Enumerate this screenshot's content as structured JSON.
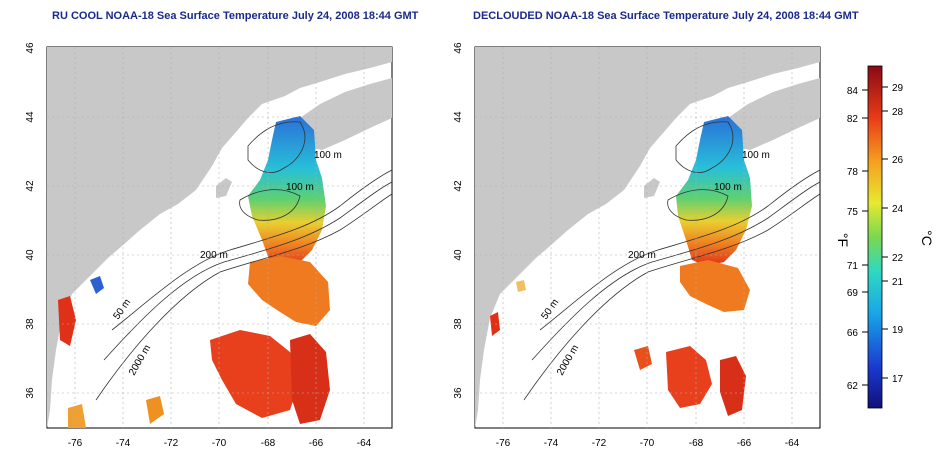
{
  "panels": [
    {
      "title": "RU COOL NOAA-18 Sea Surface Temperature July 24, 2008 18:44 GMT",
      "contour_labels": [
        "100 m",
        "100 m",
        "200 m",
        "50 m",
        "2000 m"
      ]
    },
    {
      "title": "DECLOUDED NOAA-18 Sea Surface Temperature July 24, 2008 18:44 GMT",
      "contour_labels": [
        "100 m",
        "100 m",
        "200 m",
        "50 m",
        "2000 m"
      ]
    }
  ],
  "axes": {
    "lon_ticks": [
      "-76",
      "-74",
      "-72",
      "-70",
      "-68",
      "-66",
      "-64"
    ],
    "lat_ticks": [
      "46",
      "44",
      "42",
      "40",
      "38",
      "36"
    ]
  },
  "colorbar": {
    "f_label": "°F",
    "c_label": "°C",
    "f_ticks": [
      "84",
      "82",
      "78",
      "75",
      "71",
      "69",
      "66",
      "62"
    ],
    "c_ticks": [
      "29",
      "28",
      "26",
      "24",
      "22",
      "21",
      "19",
      "17"
    ]
  },
  "colors": {
    "land": "#c8c8c8",
    "title": "#1a2a8c",
    "cold": "#1a2aa0",
    "warm": "#b0101a"
  }
}
